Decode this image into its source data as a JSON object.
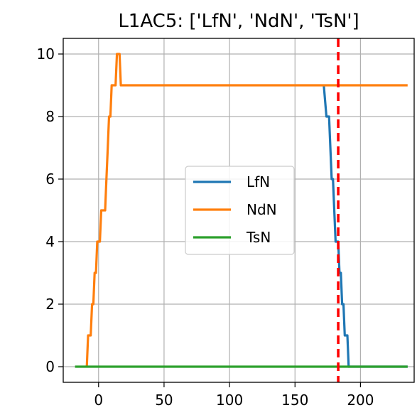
{
  "chart_data": {
    "type": "line",
    "title": "L1AC5: ['LfN', 'NdN', 'TsN']",
    "xlabel": "",
    "ylabel": "",
    "xlim": [
      -27,
      241
    ],
    "ylim": [
      -0.5,
      10.5
    ],
    "xticks": [
      0,
      50,
      100,
      150,
      200
    ],
    "yticks": [
      0,
      2,
      4,
      6,
      8,
      10
    ],
    "grid": true,
    "legend_position": "center",
    "vline": {
      "x": 183,
      "color": "#ff0000",
      "style": "dashed"
    },
    "series": [
      {
        "name": "LfN",
        "color": "#1f77b4",
        "x": [
          172,
          174,
          176,
          178,
          179,
          181,
          182,
          183,
          184,
          185,
          186,
          187,
          188,
          189,
          190,
          191,
          192,
          236
        ],
        "y": [
          9,
          8,
          8,
          6,
          6,
          4,
          4,
          4,
          3,
          3,
          2,
          2,
          1,
          1,
          1,
          0,
          0,
          0
        ]
      },
      {
        "name": "NdN",
        "color": "#ff7f0e",
        "x": [
          -9,
          -8,
          -6,
          -5,
          -4,
          -3,
          -2,
          -1,
          1,
          2,
          3,
          4,
          5,
          6,
          7,
          8,
          9,
          10,
          11,
          12,
          13,
          14,
          15,
          16,
          17,
          18,
          19,
          236
        ],
        "y": [
          0,
          1,
          1,
          2,
          2,
          3,
          3,
          4,
          4,
          5,
          5,
          5,
          5,
          6,
          7,
          8,
          8,
          9,
          9,
          9,
          9,
          10,
          10,
          10,
          9,
          9,
          9,
          9
        ]
      },
      {
        "name": "TsN",
        "color": "#2ca02c",
        "x": [
          -18,
          236
        ],
        "y": [
          0,
          0
        ]
      }
    ]
  }
}
